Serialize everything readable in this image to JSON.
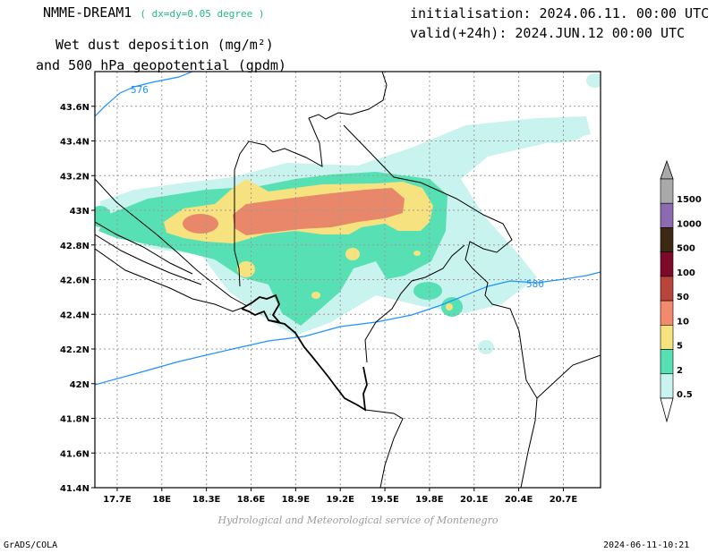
{
  "header": {
    "model": "NMME-DREAM1",
    "resolution": "( dx=dy=0.05 degree )",
    "init": "initialisation: 2024.06.11. 00:00 UTC",
    "valid": "valid(+24h): 2024.JUN.12 00:00 UTC",
    "title_line1": "Wet dust deposition (mg/m²)",
    "title_line2": "and 500 hPa geopotential (gpdm)"
  },
  "chart_data": {
    "type": "heatmap",
    "x_ticks": [
      "17.7E",
      "18E",
      "18.3E",
      "18.6E",
      "18.9E",
      "19.2E",
      "19.5E",
      "19.8E",
      "20.1E",
      "20.4E",
      "20.7E"
    ],
    "y_ticks": [
      "43.6N",
      "43.4N",
      "43.2N",
      "43N",
      "42.8N",
      "42.6N",
      "42.4N",
      "42.2N",
      "42N",
      "41.8N",
      "41.6N",
      "41.4N"
    ],
    "xlim": [
      17.55,
      20.95
    ],
    "ylim": [
      41.4,
      43.8
    ],
    "grid": true,
    "contours": [
      {
        "label": "576",
        "color": "#1e90ff"
      },
      {
        "label": "580",
        "color": "#1e90ff"
      }
    ],
    "legend": {
      "placement": "right",
      "levels": [
        {
          "label": "1500",
          "color": "#a9a9a9"
        },
        {
          "label": "1000",
          "color": "#8c6bb1"
        },
        {
          "label": "500",
          "color": "#3d2814"
        },
        {
          "label": "100",
          "color": "#7d0a28"
        },
        {
          "label": "50",
          "color": "#b8443a"
        },
        {
          "label": "10",
          "color": "#f28a6c"
        },
        {
          "label": "5",
          "color": "#f6e27f"
        },
        {
          "label": "2",
          "color": "#56e0b4"
        },
        {
          "label": "0.5",
          "color": "#c9f3ee"
        }
      ]
    }
  },
  "footer": {
    "credit": "Hydrological and Meteorological service of Montenegro",
    "software": "GrADS/COLA",
    "timestamp": "2024-06-11-10:21"
  }
}
